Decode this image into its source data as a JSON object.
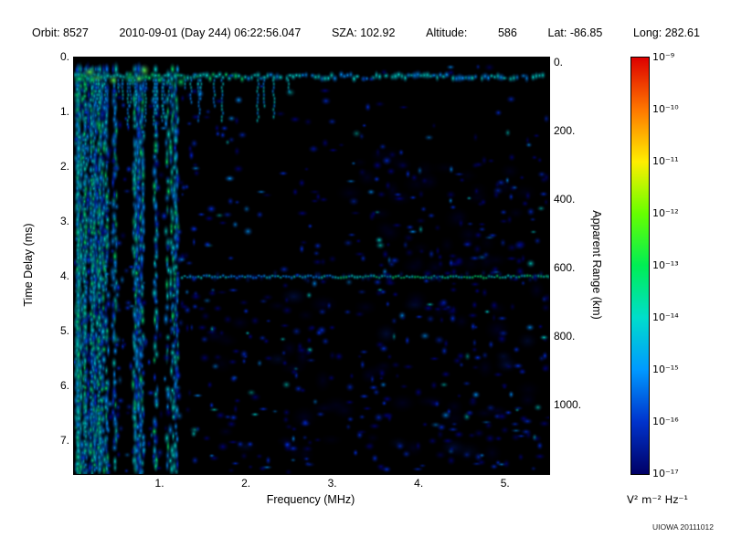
{
  "header": {
    "segments": [
      "Orbit: 8527",
      "2010-09-01 (Day 244) 06:22:56.047",
      "SZA: 102.92",
      "Altitude:",
      "586",
      "Lat: -86.85",
      "Long: 282.61"
    ]
  },
  "chart_data": {
    "type": "heatmap",
    "title": "",
    "xlabel": "Frequency (MHz)",
    "ylabel": "Time Delay (ms)",
    "y2label": "Apparent Range (km)",
    "xlim": [
      0,
      5.5
    ],
    "ylim": [
      0,
      7.6
    ],
    "y2lim": [
      -16,
      1200
    ],
    "x_ticks": [
      "1.",
      "2.",
      "3.",
      "4.",
      "5."
    ],
    "x_tick_values": [
      1,
      2,
      3,
      4,
      5
    ],
    "y_ticks": [
      "0.",
      "1.",
      "2.",
      "3.",
      "4.",
      "5.",
      "6.",
      "7."
    ],
    "y_tick_values": [
      0,
      1,
      2,
      3,
      4,
      5,
      6,
      7
    ],
    "y2_ticks": [
      "0.",
      "200.",
      "400.",
      "600.",
      "800.",
      "1000."
    ],
    "y2_tick_values": [
      0,
      200,
      400,
      600,
      800,
      1000
    ],
    "background": "#000000",
    "grid": false,
    "features": [
      {
        "name": "surface-echo-band",
        "time_delay_ms": 0.35,
        "freq_range_mhz": [
          0,
          5.5
        ],
        "color": "green-cyan"
      },
      {
        "name": "ionospheric-vertical-stripes",
        "freq_range_mhz": [
          0,
          1.42
        ],
        "time_range_ms": [
          0,
          7.6
        ],
        "color": "blue-cyan-green"
      },
      {
        "name": "second-hop-surface-echo",
        "time_delay_ms": 4.0,
        "apparent_range_km": 600,
        "freq_range_mhz": [
          1.25,
          5.5
        ],
        "color": "cyan-green"
      },
      {
        "name": "scattered-noise",
        "color": "dark-blue",
        "distribution": "sparse speckle, denser below 4 ms and at 3-5.5 MHz"
      }
    ],
    "colorbar": {
      "unit_label": "V² m⁻² Hz⁻¹",
      "scale": "log",
      "tick_labels": [
        "10⁻⁹",
        "10⁻¹⁰",
        "10⁻¹¹",
        "10⁻¹²",
        "10⁻¹³",
        "10⁻¹⁴",
        "10⁻¹⁵",
        "10⁻¹⁶",
        "10⁻¹⁷"
      ],
      "colors_top_to_bottom": [
        "#dd0000",
        "#ff7700",
        "#ffee00",
        "#66ff00",
        "#00ee55",
        "#00ddcc",
        "#0099ff",
        "#0033cc",
        "#000066"
      ]
    }
  },
  "watermark": "UIOWA 20111012"
}
